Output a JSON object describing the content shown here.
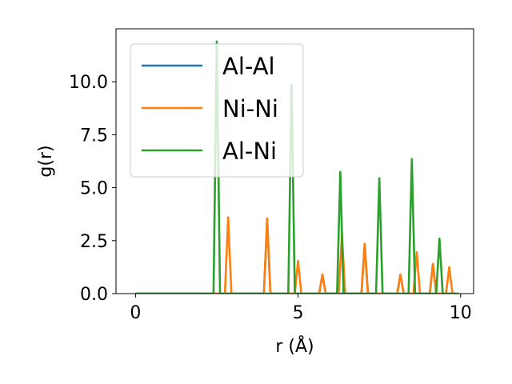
{
  "chart_data": {
    "type": "line",
    "xlabel": "r (Å)",
    "ylabel": "g(r)",
    "xlim": [
      -0.6,
      10.4
    ],
    "ylim": [
      0,
      12.5
    ],
    "xticks": [
      0,
      5,
      10
    ],
    "yticks": [
      0.0,
      2.5,
      5.0,
      7.5,
      10.0
    ],
    "xtick_labels": [
      "0",
      "5",
      "10"
    ],
    "ytick_labels": [
      "0.0",
      "2.5",
      "5.0",
      "7.5",
      "10.0"
    ],
    "grid": false,
    "legend_position": "top-left",
    "series": [
      {
        "name": "Al-Al",
        "color": "#1f77b4",
        "x": [
          0,
          3.95,
          4.05,
          4.15,
          5.65,
          5.75,
          5.85,
          6.95,
          7.05,
          7.15,
          8.05,
          8.15,
          8.25,
          9.05,
          9.15,
          9.25,
          9.85
        ],
        "y": [
          0,
          0,
          3.55,
          0,
          0,
          0.9,
          0,
          0,
          2.35,
          0,
          0,
          0.9,
          0,
          0,
          1.4,
          0,
          0
        ]
      },
      {
        "name": "Ni-Ni",
        "color": "#ff7f0e",
        "x": [
          0,
          2.75,
          2.85,
          2.95,
          3.95,
          4.05,
          4.15,
          4.9,
          5.0,
          5.1,
          5.65,
          5.75,
          5.85,
          6.25,
          6.35,
          6.45,
          6.95,
          7.05,
          7.15,
          8.05,
          8.15,
          8.25,
          8.55,
          8.65,
          8.75,
          9.05,
          9.15,
          9.25,
          9.55,
          9.65,
          9.75,
          9.85
        ],
        "y": [
          0,
          0,
          3.6,
          0,
          0,
          3.55,
          0,
          0,
          1.55,
          0,
          0,
          0.9,
          0,
          0,
          2.8,
          0,
          0,
          2.35,
          0,
          0,
          0.9,
          0,
          0,
          1.95,
          0,
          0,
          1.4,
          0,
          0,
          1.25,
          0,
          0
        ]
      },
      {
        "name": "Al-Ni",
        "color": "#2ca02c",
        "x": [
          0,
          2.4,
          2.5,
          2.6,
          4.7,
          4.8,
          4.9,
          6.2,
          6.3,
          6.4,
          7.4,
          7.5,
          7.6,
          8.4,
          8.5,
          8.6,
          9.25,
          9.35,
          9.45,
          9.95
        ],
        "y": [
          0,
          0,
          11.9,
          0,
          0,
          9.85,
          0,
          0,
          5.75,
          0,
          0,
          5.45,
          0,
          0,
          6.35,
          0,
          0,
          2.6,
          0,
          0
        ]
      }
    ]
  }
}
